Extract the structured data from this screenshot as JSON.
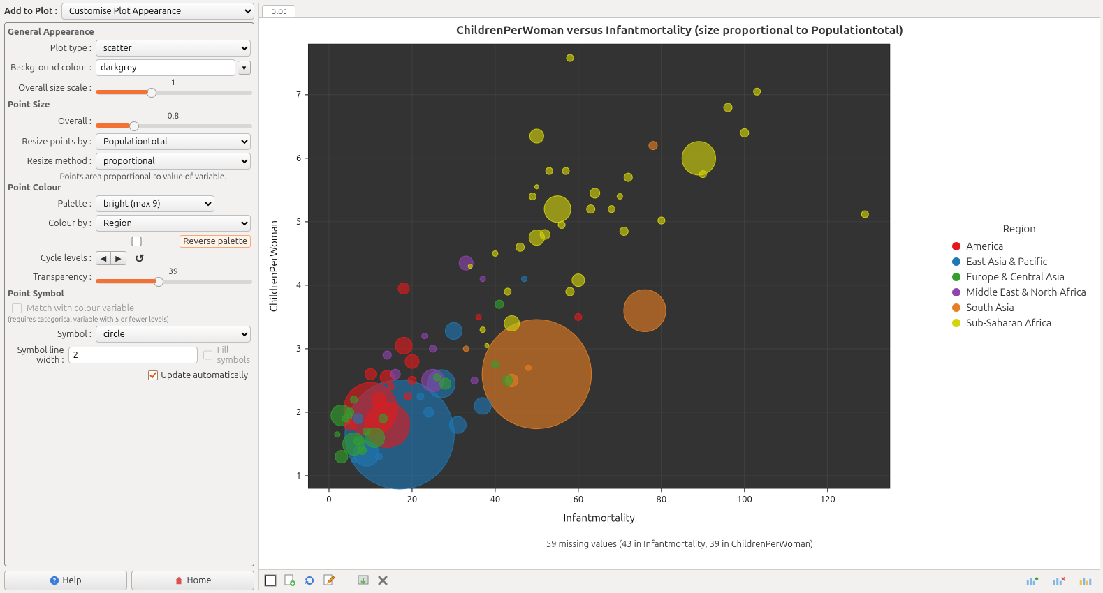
{
  "sidebar": {
    "add_to_plot_label": "Add to Plot :",
    "add_to_plot_value": "Customise Plot Appearance",
    "general": {
      "heading": "General Appearance",
      "plot_type_label": "Plot type :",
      "plot_type_value": "scatter",
      "bg_colour_label": "Background colour :",
      "bg_colour_value": "darkgrey",
      "overall_size_label": "Overall size scale :",
      "overall_size_value": "1"
    },
    "point_size": {
      "heading": "Point Size",
      "overall_label": "Overall :",
      "overall_value": "0.8",
      "resize_by_label": "Resize points by :",
      "resize_by_value": "Populationtotal",
      "resize_method_label": "Resize method :",
      "resize_method_value": "proportional",
      "note": "Points area proportional to value of variable."
    },
    "point_colour": {
      "heading": "Point Colour",
      "palette_label": "Palette :",
      "palette_value": "bright (max 9)",
      "colour_by_label": "Colour by :",
      "colour_by_value": "Region",
      "reverse_label": "Reverse palette",
      "cycle_label": "Cycle levels :",
      "transparency_label": "Transparency :",
      "transparency_value": "39"
    },
    "point_symbol": {
      "heading": "Point Symbol",
      "match_label": "Match with colour variable",
      "match_note": "(requires categorical variable with 5 or fewer levels)",
      "symbol_label": "Symbol :",
      "symbol_value": "circle",
      "line_width_label": "Symbol line width :",
      "line_width_value": "2",
      "fill_label": "Fill symbols"
    },
    "update_label": "Update automatically",
    "help_label": "Help",
    "home_label": "Home"
  },
  "plot": {
    "tab_label": "plot",
    "title": "ChildrenPerWoman versus Infantmortality (size proportional to Populationtotal)",
    "caption": "59 missing values (43 in Infantmortality, 39 in ChildrenPerWoman)",
    "chart": {
      "type": "scatter_bubble",
      "background_color": "#333333",
      "grid_color": "#4a4a4a",
      "xlabel": "Infantmortality",
      "ylabel": "ChildrenPerWoman",
      "xlim": [
        -5,
        135
      ],
      "ylim": [
        0.8,
        7.8
      ],
      "xticks": [
        0,
        20,
        40,
        60,
        80,
        100,
        120
      ],
      "yticks": [
        1,
        2,
        3,
        4,
        5,
        6,
        7
      ],
      "point_opacity": 0.61,
      "legend_title": "Region",
      "categories": [
        {
          "name": "America",
          "color": "#e31a1c"
        },
        {
          "name": "East Asia & Pacific",
          "color": "#1f78b4"
        },
        {
          "name": "Europe & Central Asia",
          "color": "#33a02c"
        },
        {
          "name": "Middle East & North Africa",
          "color": "#8e44ad"
        },
        {
          "name": "South Asia",
          "color": "#e67e22"
        },
        {
          "name": "Sub-Saharan Africa",
          "color": "#d4d40a"
        }
      ],
      "points": [
        {
          "x": 50,
          "y": 2.6,
          "r": 78,
          "cat": 4
        },
        {
          "x": 17,
          "y": 1.65,
          "r": 78,
          "cat": 1
        },
        {
          "x": 76,
          "y": 3.6,
          "r": 30,
          "cat": 4
        },
        {
          "x": 10,
          "y": 2.05,
          "r": 38,
          "cat": 0
        },
        {
          "x": 14,
          "y": 1.8,
          "r": 32,
          "cat": 0
        },
        {
          "x": 89,
          "y": 6.0,
          "r": 24,
          "cat": 5
        },
        {
          "x": 27,
          "y": 2.45,
          "r": 20,
          "cat": 1
        },
        {
          "x": 9,
          "y": 1.35,
          "r": 18,
          "cat": 1
        },
        {
          "x": 55,
          "y": 5.2,
          "r": 19,
          "cat": 5
        },
        {
          "x": 6,
          "y": 1.5,
          "r": 16,
          "cat": 2
        },
        {
          "x": 18,
          "y": 3.05,
          "r": 12,
          "cat": 0
        },
        {
          "x": 3,
          "y": 1.95,
          "r": 15,
          "cat": 2
        },
        {
          "x": 31,
          "y": 1.8,
          "r": 12,
          "cat": 1
        },
        {
          "x": 12,
          "y": 2.2,
          "r": 10,
          "cat": 0
        },
        {
          "x": 30,
          "y": 3.28,
          "r": 12,
          "cat": 1
        },
        {
          "x": 11,
          "y": 1.6,
          "r": 14,
          "cat": 2
        },
        {
          "x": 25,
          "y": 2.5,
          "r": 16,
          "cat": 3
        },
        {
          "x": 44,
          "y": 2.5,
          "r": 9,
          "cat": 4
        },
        {
          "x": 37,
          "y": 2.1,
          "r": 12,
          "cat": 1
        },
        {
          "x": 20,
          "y": 2.8,
          "r": 10,
          "cat": 0
        },
        {
          "x": 5,
          "y": 1.8,
          "r": 8,
          "cat": 0
        },
        {
          "x": 8,
          "y": 1.4,
          "r": 6,
          "cat": 2
        },
        {
          "x": 3,
          "y": 1.3,
          "r": 9,
          "cat": 2
        },
        {
          "x": 7,
          "y": 1.55,
          "r": 6,
          "cat": 2
        },
        {
          "x": 14,
          "y": 2.55,
          "r": 10,
          "cat": 0
        },
        {
          "x": 18,
          "y": 3.95,
          "r": 8,
          "cat": 0
        },
        {
          "x": 33,
          "y": 4.35,
          "r": 10,
          "cat": 3
        },
        {
          "x": 41,
          "y": 3.7,
          "r": 6,
          "cat": 2
        },
        {
          "x": 40,
          "y": 2.75,
          "r": 5,
          "cat": 2
        },
        {
          "x": 60,
          "y": 3.5,
          "r": 5,
          "cat": 0
        },
        {
          "x": 43,
          "y": 2.5,
          "r": 7,
          "cat": 2
        },
        {
          "x": 50,
          "y": 4.75,
          "r": 11,
          "cat": 5
        },
        {
          "x": 52,
          "y": 4.8,
          "r": 7,
          "cat": 5
        },
        {
          "x": 46,
          "y": 4.6,
          "r": 6,
          "cat": 5
        },
        {
          "x": 60,
          "y": 4.08,
          "r": 9,
          "cat": 5
        },
        {
          "x": 58,
          "y": 3.9,
          "r": 6,
          "cat": 5
        },
        {
          "x": 44,
          "y": 3.4,
          "r": 11,
          "cat": 5
        },
        {
          "x": 56,
          "y": 4.95,
          "r": 5,
          "cat": 5
        },
        {
          "x": 63,
          "y": 5.2,
          "r": 6,
          "cat": 5
        },
        {
          "x": 49,
          "y": 5.4,
          "r": 5,
          "cat": 5
        },
        {
          "x": 64,
          "y": 5.45,
          "r": 7,
          "cat": 5
        },
        {
          "x": 68,
          "y": 5.2,
          "r": 5,
          "cat": 5
        },
        {
          "x": 53,
          "y": 5.8,
          "r": 5,
          "cat": 5
        },
        {
          "x": 57,
          "y": 5.8,
          "r": 5,
          "cat": 5
        },
        {
          "x": 70,
          "y": 5.4,
          "r": 4,
          "cat": 5
        },
        {
          "x": 50,
          "y": 6.35,
          "r": 10,
          "cat": 5
        },
        {
          "x": 78,
          "y": 6.2,
          "r": 6,
          "cat": 4
        },
        {
          "x": 71,
          "y": 4.85,
          "r": 6,
          "cat": 5
        },
        {
          "x": 72,
          "y": 5.7,
          "r": 6,
          "cat": 5
        },
        {
          "x": 80,
          "y": 5.02,
          "r": 5,
          "cat": 5
        },
        {
          "x": 96,
          "y": 6.8,
          "r": 6,
          "cat": 5
        },
        {
          "x": 90,
          "y": 5.75,
          "r": 5,
          "cat": 5
        },
        {
          "x": 100,
          "y": 6.4,
          "r": 6,
          "cat": 5
        },
        {
          "x": 103,
          "y": 7.05,
          "r": 5,
          "cat": 5
        },
        {
          "x": 58,
          "y": 7.58,
          "r": 5,
          "cat": 5
        },
        {
          "x": 129,
          "y": 5.12,
          "r": 5,
          "cat": 5
        },
        {
          "x": 24,
          "y": 2.0,
          "r": 7,
          "cat": 1
        },
        {
          "x": 35,
          "y": 2.5,
          "r": 5,
          "cat": 3
        },
        {
          "x": 28,
          "y": 2.45,
          "r": 8,
          "cat": 2
        },
        {
          "x": 10,
          "y": 2.6,
          "r": 8,
          "cat": 0
        },
        {
          "x": 16,
          "y": 2.6,
          "r": 7,
          "cat": 3
        },
        {
          "x": 14,
          "y": 2.9,
          "r": 6,
          "cat": 3
        },
        {
          "x": 20,
          "y": 2.5,
          "r": 6,
          "cat": 0
        },
        {
          "x": 5,
          "y": 2.0,
          "r": 6,
          "cat": 2
        },
        {
          "x": 4,
          "y": 1.9,
          "r": 5,
          "cat": 2
        },
        {
          "x": 9,
          "y": 1.7,
          "r": 5,
          "cat": 2
        },
        {
          "x": 13,
          "y": 1.9,
          "r": 6,
          "cat": 2
        },
        {
          "x": 2,
          "y": 1.65,
          "r": 4,
          "cat": 2
        },
        {
          "x": 6,
          "y": 1.25,
          "r": 4,
          "cat": 1
        },
        {
          "x": 12,
          "y": 1.3,
          "r": 5,
          "cat": 1
        },
        {
          "x": 22,
          "y": 2.25,
          "r": 5,
          "cat": 1
        },
        {
          "x": 25,
          "y": 3.0,
          "r": 5,
          "cat": 3
        },
        {
          "x": 33,
          "y": 3.0,
          "r": 4,
          "cat": 4
        },
        {
          "x": 36,
          "y": 3.5,
          "r": 4,
          "cat": 0
        },
        {
          "x": 43,
          "y": 3.9,
          "r": 5,
          "cat": 5
        },
        {
          "x": 40,
          "y": 4.5,
          "r": 4,
          "cat": 5
        },
        {
          "x": 37,
          "y": 3.3,
          "r": 4,
          "cat": 5
        },
        {
          "x": 37,
          "y": 4.1,
          "r": 4,
          "cat": 3
        },
        {
          "x": 19,
          "y": 2.25,
          "r": 5,
          "cat": 0
        },
        {
          "x": 26,
          "y": 2.55,
          "r": 5,
          "cat": 2
        },
        {
          "x": 15,
          "y": 2.4,
          "r": 4,
          "cat": 0
        },
        {
          "x": 48,
          "y": 2.7,
          "r": 4,
          "cat": 4
        },
        {
          "x": 47,
          "y": 4.1,
          "r": 4,
          "cat": 1
        },
        {
          "x": 34,
          "y": 4.3,
          "r": 3,
          "cat": 5
        },
        {
          "x": 38,
          "y": 3.05,
          "r": 3,
          "cat": 5
        },
        {
          "x": 50,
          "y": 5.55,
          "r": 3,
          "cat": 5
        },
        {
          "x": 7,
          "y": 1.9,
          "r": 7,
          "cat": 1
        },
        {
          "x": 6,
          "y": 2.2,
          "r": 5,
          "cat": 2
        },
        {
          "x": 23,
          "y": 3.2,
          "r": 4,
          "cat": 3
        }
      ]
    }
  }
}
